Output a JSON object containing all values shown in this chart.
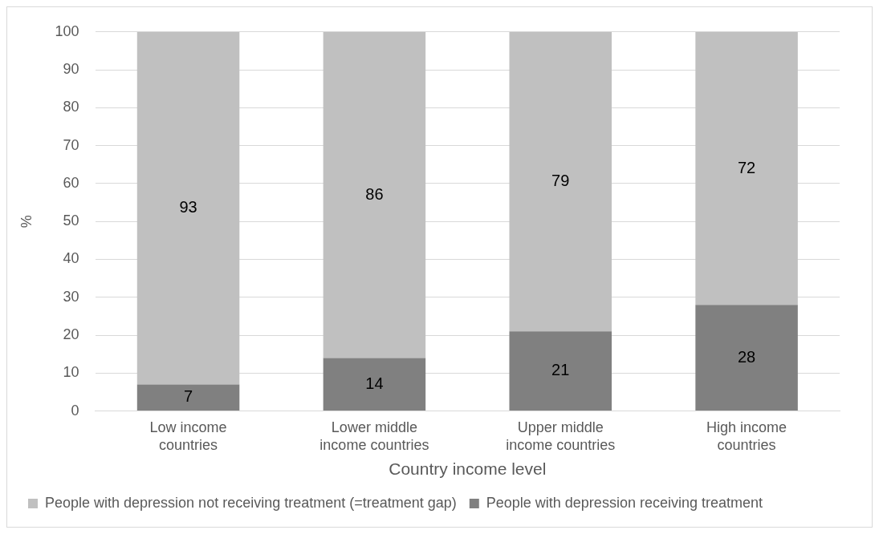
{
  "chart_data": {
    "type": "bar",
    "stacked": true,
    "xlabel": "Country income level",
    "ylabel": "%",
    "categories": [
      "Low income countries",
      "Lower middle income countries",
      "Upper middle income countries",
      "High income countries"
    ],
    "series": [
      {
        "name": "People with depression receiving treatment",
        "color": "#808080",
        "values": [
          7,
          14,
          21,
          28
        ]
      },
      {
        "name": "People with depression not receiving treatment (=treatment gap)",
        "color": "#c0c0c0",
        "values": [
          93,
          86,
          79,
          72
        ]
      }
    ],
    "ylim": [
      0,
      100
    ],
    "yticks": [
      0,
      10,
      20,
      30,
      40,
      50,
      60,
      70,
      80,
      90,
      100
    ],
    "grid": "y",
    "legend": "bottom",
    "data_labels": true
  }
}
